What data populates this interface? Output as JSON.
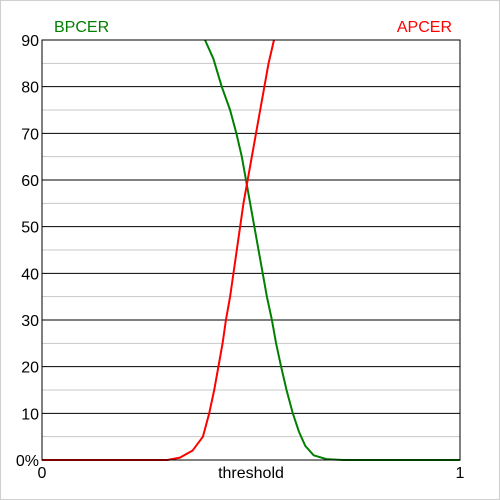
{
  "chart_data": {
    "type": "line",
    "xlabel": "threshold",
    "x_tick_labels": [
      "0",
      "1"
    ],
    "xlim": [
      0,
      1
    ],
    "ylim": [
      0,
      90
    ],
    "y_tick_labels": [
      "0%",
      "10",
      "20",
      "30",
      "40",
      "50",
      "60",
      "70",
      "80",
      "90"
    ],
    "y_ticks": [
      0,
      10,
      20,
      30,
      40,
      50,
      60,
      70,
      80,
      90
    ],
    "grid": "horizontal major lines every 10 with minor lines every 5",
    "series": [
      {
        "name": "BPCER",
        "color": "#008000",
        "legend_position": "top-left",
        "points": [
          [
            0.39,
            90
          ],
          [
            0.41,
            86
          ],
          [
            0.43,
            80
          ],
          [
            0.45,
            75
          ],
          [
            0.465,
            70
          ],
          [
            0.478,
            65
          ],
          [
            0.488,
            60
          ],
          [
            0.498,
            55
          ],
          [
            0.508,
            50
          ],
          [
            0.518,
            45
          ],
          [
            0.528,
            40
          ],
          [
            0.538,
            35
          ],
          [
            0.55,
            30
          ],
          [
            0.56,
            25
          ],
          [
            0.572,
            20
          ],
          [
            0.585,
            15
          ],
          [
            0.6,
            10
          ],
          [
            0.615,
            6
          ],
          [
            0.63,
            3
          ],
          [
            0.65,
            1
          ],
          [
            0.68,
            0.2
          ],
          [
            0.72,
            0
          ],
          [
            1.0,
            0
          ]
        ]
      },
      {
        "name": "APCER",
        "color": "#ff0000",
        "legend_position": "top-right",
        "points": [
          [
            0.0,
            0
          ],
          [
            0.3,
            0
          ],
          [
            0.33,
            0.5
          ],
          [
            0.36,
            2
          ],
          [
            0.385,
            5
          ],
          [
            0.4,
            10
          ],
          [
            0.412,
            15
          ],
          [
            0.422,
            20
          ],
          [
            0.432,
            25
          ],
          [
            0.44,
            30
          ],
          [
            0.45,
            35
          ],
          [
            0.458,
            40
          ],
          [
            0.466,
            45
          ],
          [
            0.474,
            50
          ],
          [
            0.482,
            55
          ],
          [
            0.492,
            60
          ],
          [
            0.502,
            65
          ],
          [
            0.512,
            70
          ],
          [
            0.522,
            75
          ],
          [
            0.532,
            80
          ],
          [
            0.542,
            85
          ],
          [
            0.555,
            90
          ]
        ]
      }
    ]
  }
}
